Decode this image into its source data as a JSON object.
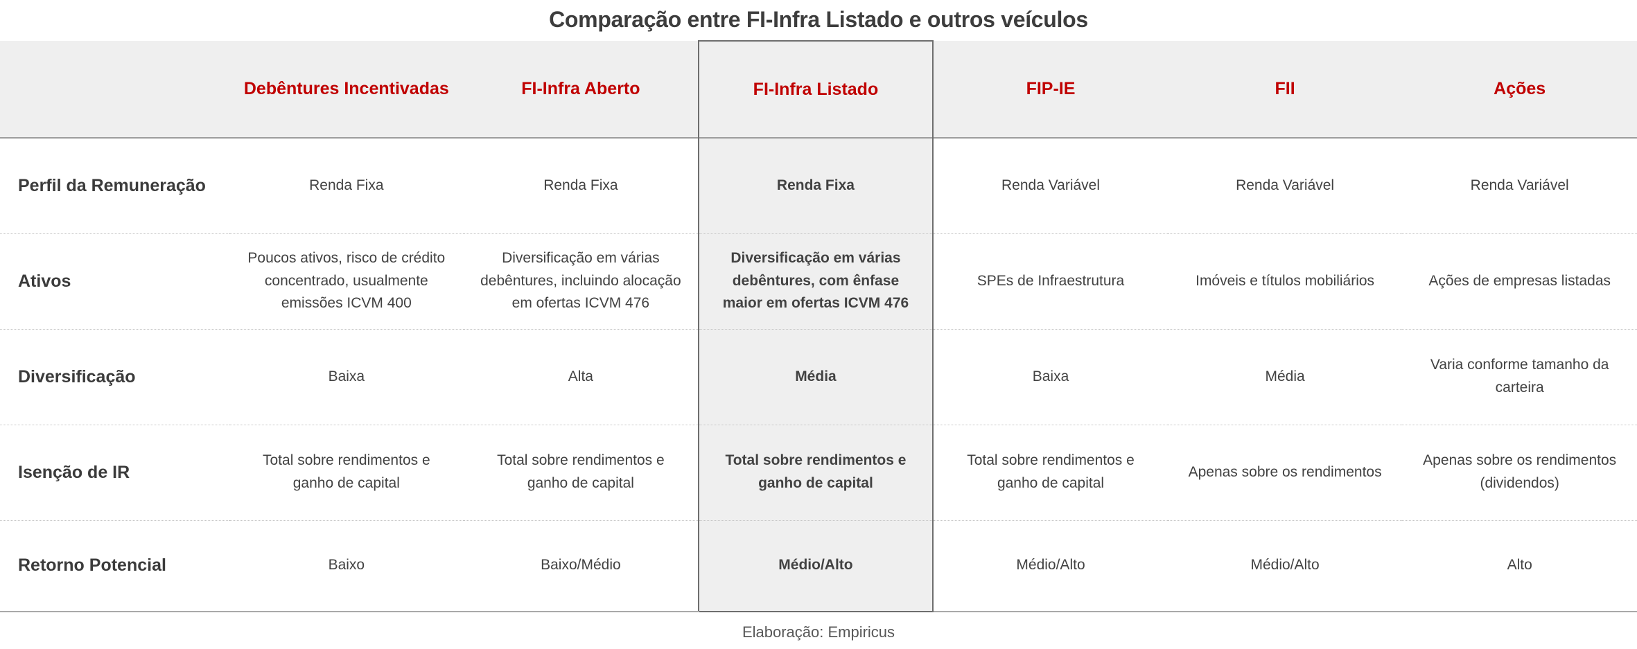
{
  "title": "Comparação entre FI-Infra Listado e outros veículos",
  "footer": {
    "source_label": "Elaboração: Empiricus"
  },
  "colors": {
    "accent_red": "#c00000",
    "header_bg": "#efefef",
    "highlight_bg": "#efefef",
    "highlight_border": "#6e6e6e",
    "body_text": "#424242",
    "label_text": "#3b3b3b"
  },
  "chart_data": {
    "type": "table",
    "title": "Comparação entre FI-Infra Listado e outros veículos",
    "source": "Elaboração: Empiricus",
    "highlighted_column": "FI-Infra Listado",
    "highlighted_column_index": 3,
    "columns": [
      "",
      "Debêntures Incentivadas",
      "FI-Infra Aberto",
      "FI-Infra Listado",
      "FIP-IE",
      "FII",
      "Ações"
    ],
    "rows": [
      {
        "label": "Perfil da Remuneração",
        "values": [
          "Renda Fixa",
          "Renda Fixa",
          "Renda Fixa",
          "Renda Variável",
          "Renda Variável",
          "Renda Variável"
        ]
      },
      {
        "label": "Ativos",
        "values": [
          "Poucos ativos, risco de crédito concentrado, usualmente emissões ICVM 400",
          "Diversificação em várias debêntures, incluindo alocação em ofertas ICVM 476",
          "Diversificação em várias debêntures, com ênfase maior em ofertas ICVM 476",
          "SPEs de Infraestrutura",
          "Imóveis e títulos mobiliários",
          "Ações de empresas listadas"
        ]
      },
      {
        "label": "Diversificação",
        "values": [
          "Baixa",
          "Alta",
          "Média",
          "Baixa",
          "Média",
          "Varia conforme tamanho da carteira"
        ]
      },
      {
        "label": "Isenção de IR",
        "values": [
          "Total sobre rendimentos e ganho de capital",
          "Total sobre rendimentos e ganho de capital",
          "Total sobre rendimentos e ganho de capital",
          "Total sobre rendimentos e ganho de capital",
          "Apenas sobre os rendimentos",
          "Apenas sobre os rendimentos (dividendos)"
        ]
      },
      {
        "label": "Retorno Potencial",
        "values": [
          "Baixo",
          "Baixo/Médio",
          "Médio/Alto",
          "Médio/Alto",
          "Médio/Alto",
          "Alto"
        ]
      }
    ]
  }
}
